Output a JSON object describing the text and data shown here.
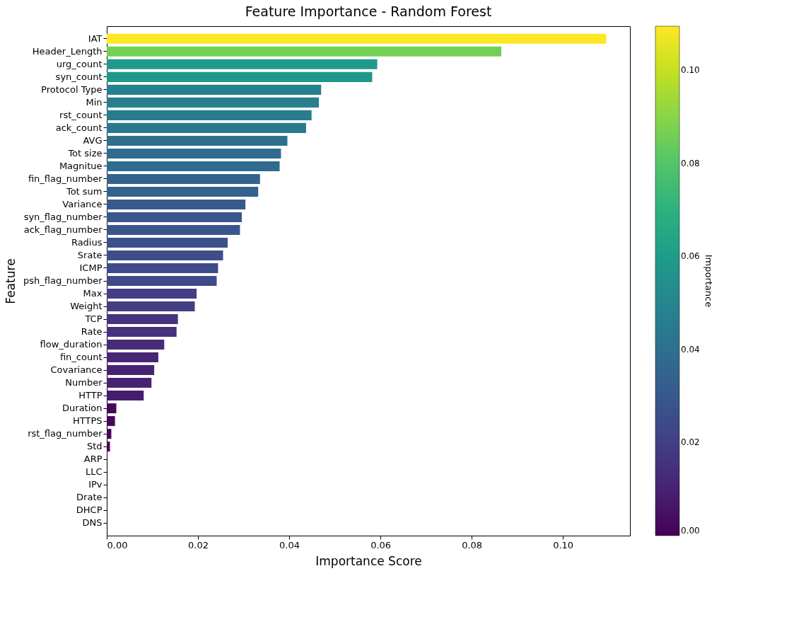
{
  "chart_data": {
    "type": "bar",
    "orientation": "horizontal",
    "title": "Feature Importance - Random Forest",
    "xlabel": "Importance Score",
    "ylabel": "Feature",
    "clabel": "Importance",
    "categories": [
      "IAT",
      "Header_Length",
      "urg_count",
      "syn_count",
      "Protocol Type",
      "Min",
      "rst_count",
      "ack_count",
      "AVG",
      "Tot size",
      "Magnitue",
      "fin_flag_number",
      "Tot sum",
      "Variance",
      "syn_flag_number",
      "ack_flag_number",
      "Radius",
      "Srate",
      "ICMP",
      "psh_flag_number",
      "Max",
      "Weight",
      "TCP",
      "Rate",
      "flow_duration",
      "fin_count",
      "Covariance",
      "Number",
      "HTTP",
      "Duration",
      "HTTPS",
      "rst_flag_number",
      "Std",
      "ARP",
      "LLC",
      "IPv",
      "Drate",
      "DHCP",
      "DNS"
    ],
    "values": [
      0.1095,
      0.0865,
      0.0593,
      0.0582,
      0.047,
      0.0465,
      0.0449,
      0.0437,
      0.0396,
      0.0382,
      0.0379,
      0.0336,
      0.0332,
      0.0304,
      0.0296,
      0.0292,
      0.0265,
      0.0255,
      0.0244,
      0.0241,
      0.0197,
      0.0193,
      0.0156,
      0.0153,
      0.0126,
      0.0113,
      0.0104,
      0.0098,
      0.0081,
      0.0021,
      0.0018,
      0.001,
      0.0007,
      0,
      0,
      0,
      0,
      0,
      0
    ],
    "xlim": [
      0,
      0.1147
    ],
    "xticks": [
      {
        "value": 0,
        "label": "0.00"
      },
      {
        "value": 0.02,
        "label": "0.02"
      },
      {
        "value": 0.04,
        "label": "0.04"
      },
      {
        "value": 0.06,
        "label": "0.06"
      },
      {
        "value": 0.08,
        "label": "0.08"
      },
      {
        "value": 0.1,
        "label": "0.10"
      }
    ],
    "clim": [
      0,
      0.1095
    ],
    "cticks": [
      {
        "value": 0,
        "label": "0.00"
      },
      {
        "value": 0.02,
        "label": "0.02"
      },
      {
        "value": 0.04,
        "label": "0.04"
      },
      {
        "value": 0.06,
        "label": "0.06"
      },
      {
        "value": 0.08,
        "label": "0.08"
      },
      {
        "value": 0.1,
        "label": "0.10"
      }
    ],
    "grid": false
  }
}
